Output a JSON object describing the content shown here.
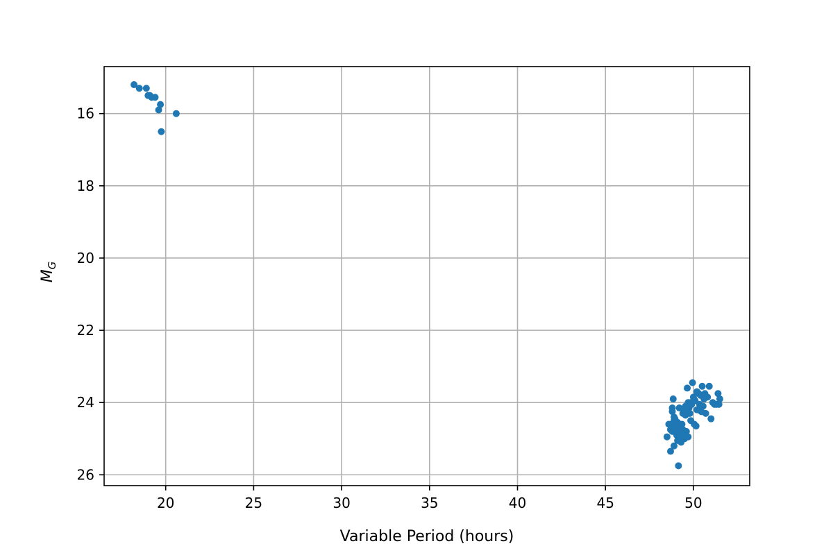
{
  "chart_data": {
    "type": "scatter",
    "xlabel": "Variable Period (hours)",
    "ylabel_main": "M",
    "ylabel_sub": "G",
    "xlim": [
      16.5,
      53.2
    ],
    "ylim": [
      26.3,
      14.7
    ],
    "y_inverted": true,
    "grid": true,
    "xticks": [
      20,
      25,
      30,
      35,
      40,
      45,
      50
    ],
    "yticks": [
      16,
      18,
      20,
      22,
      24,
      26
    ],
    "marker_color": "#1f77b4",
    "series": [
      {
        "x": [
          18.2,
          18.5,
          18.9,
          19.0,
          19.2,
          19.4,
          19.6,
          19.7,
          19.75,
          20.6,
          19.1,
          48.5,
          48.7,
          48.75,
          48.8,
          48.85,
          48.9,
          48.9,
          48.95,
          49.0,
          49.05,
          49.1,
          49.15,
          49.2,
          49.2,
          49.3,
          49.3,
          49.35,
          49.4,
          49.45,
          49.5,
          49.5,
          49.55,
          49.6,
          49.6,
          49.65,
          49.7,
          49.75,
          49.8,
          49.85,
          49.9,
          49.95,
          50.0,
          50.05,
          50.1,
          50.15,
          50.2,
          50.25,
          50.3,
          50.35,
          50.4,
          50.45,
          50.5,
          50.6,
          50.65,
          50.7,
          50.8,
          50.9,
          51.0,
          51.1,
          51.2,
          51.3,
          51.4,
          51.45,
          51.5,
          48.6,
          48.7,
          48.8,
          48.95,
          49.1,
          49.2,
          49.25,
          49.4,
          49.5,
          49.55,
          49.7,
          49.85,
          50.0,
          50.2,
          50.45,
          50.55,
          48.8,
          48.9,
          49.15,
          49.35
        ],
        "y": [
          15.2,
          15.3,
          15.3,
          15.5,
          15.55,
          15.55,
          15.9,
          15.75,
          16.5,
          16.0,
          15.5,
          24.95,
          25.35,
          24.6,
          24.25,
          23.9,
          24.5,
          25.2,
          24.8,
          24.65,
          24.9,
          25.05,
          25.75,
          24.15,
          24.7,
          24.85,
          25.1,
          24.6,
          24.3,
          24.2,
          24.9,
          25.0,
          24.1,
          24.25,
          24.8,
          23.6,
          24.0,
          24.15,
          24.3,
          24.5,
          24.05,
          23.45,
          23.85,
          24.6,
          23.95,
          24.65,
          23.7,
          24.2,
          23.75,
          24.05,
          23.8,
          24.25,
          23.55,
          23.9,
          23.75,
          24.3,
          23.85,
          23.55,
          24.45,
          24.0,
          24.05,
          24.05,
          23.75,
          24.05,
          23.9,
          24.6,
          24.75,
          24.15,
          24.45,
          24.55,
          24.6,
          24.95,
          24.75,
          24.8,
          24.35,
          24.95,
          24.0,
          23.95,
          24.2,
          24.25,
          24.1,
          24.8,
          24.4,
          24.65,
          25.0
        ]
      }
    ]
  }
}
